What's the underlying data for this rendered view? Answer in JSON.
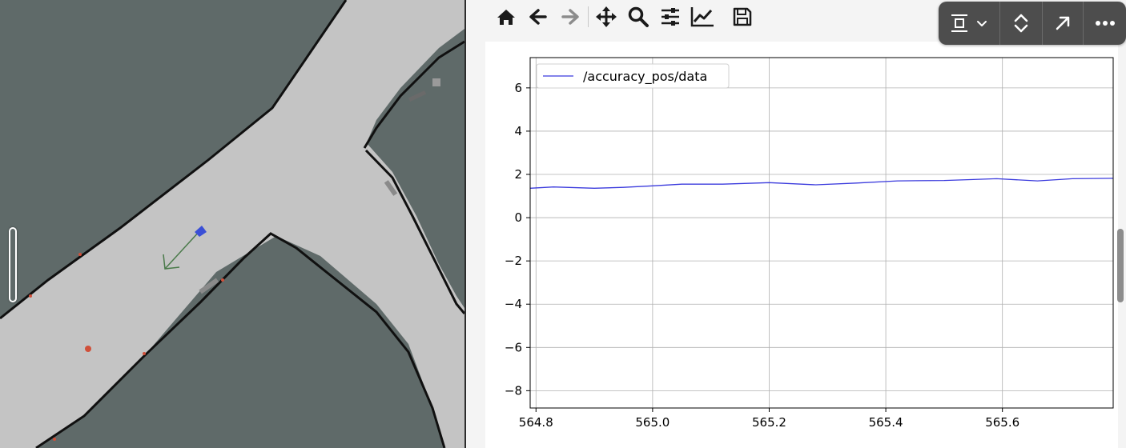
{
  "map": {
    "background": "#5f6a69",
    "free_space": "#c4c4c4",
    "wall": "#101010",
    "pose_arrow_color": "#4a7a4a",
    "robot_marker_color": "#3a4fd6",
    "laser_points_color": "#d0503a"
  },
  "toolbar": {
    "icons": [
      "home-icon",
      "back-arrow-icon",
      "forward-arrow-icon",
      "pan-icon",
      "zoom-icon",
      "subplots-config-icon",
      "edit-axis-icon",
      "save-icon"
    ]
  },
  "float_toolbar": {
    "icons": [
      "layout-icon",
      "chevron-down-icon",
      "expand-collapse-icon",
      "open-external-icon",
      "more-icon"
    ]
  },
  "chart_data": {
    "type": "line",
    "title": "",
    "xlabel": "",
    "ylabel": "",
    "xlim": [
      564.79,
      565.79
    ],
    "ylim": [
      -8.8,
      7.4
    ],
    "xticks": [
      564.8,
      565.0,
      565.2,
      565.4,
      565.6
    ],
    "xtick_labels": [
      "564.8",
      "565.0",
      "565.2",
      "565.4",
      "565.6"
    ],
    "yticks": [
      -8,
      -6,
      -4,
      -2,
      0,
      2,
      4,
      6
    ],
    "ytick_labels": [
      "−8",
      "−6",
      "−4",
      "−2",
      "0",
      "2",
      "4",
      "6"
    ],
    "grid": true,
    "legend_position": "upper-left",
    "series": [
      {
        "name": "/accuracy_pos/data",
        "color": "#3b3bdd",
        "x": [
          564.79,
          564.83,
          564.9,
          564.95,
          565.0,
          565.05,
          565.12,
          565.2,
          565.28,
          565.35,
          565.42,
          565.5,
          565.59,
          565.66,
          565.72,
          565.79
        ],
        "y": [
          1.36,
          1.42,
          1.36,
          1.4,
          1.47,
          1.55,
          1.55,
          1.62,
          1.52,
          1.6,
          1.7,
          1.72,
          1.8,
          1.7,
          1.8,
          1.82
        ]
      }
    ]
  }
}
